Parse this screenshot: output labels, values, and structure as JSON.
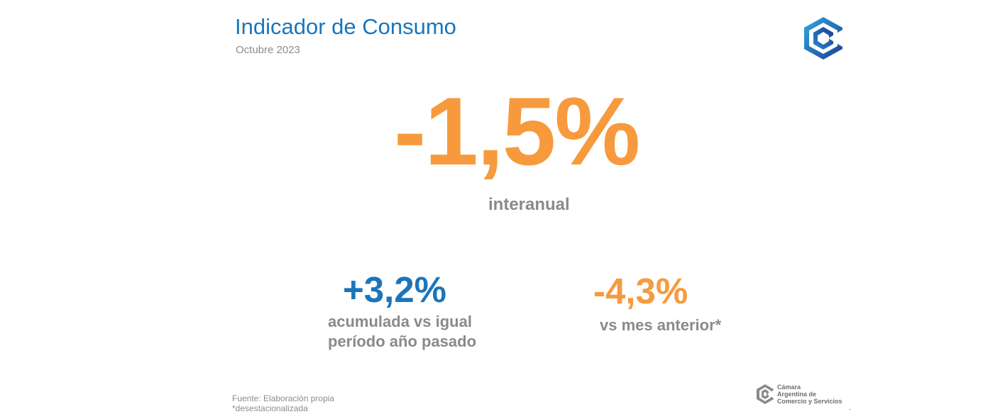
{
  "header": {
    "title": "Indicador de Consumo",
    "subtitle": "Octubre 2023"
  },
  "main_indicator": {
    "value": "-1,5%",
    "label": "interanual",
    "color": "#f79a3e"
  },
  "accumulated": {
    "value": "+3,2%",
    "label_line1": "acumulada vs igual",
    "label_line2": "período año pasado",
    "color": "#1b75bb"
  },
  "month_over_month": {
    "value": "-4,3%",
    "label": "vs mes anterior*",
    "color": "#f79a3e"
  },
  "footer": {
    "source": "Fuente: Elaboración propia",
    "note": "*desestacionalizada"
  },
  "organization": {
    "name_line1": "Cámara",
    "name_line2": "Argentina de",
    "name_line3": "Comercio y Servicios"
  },
  "icons": {
    "brand_logo": "cube-logo-icon",
    "org_logo": "cac-logo-icon"
  }
}
